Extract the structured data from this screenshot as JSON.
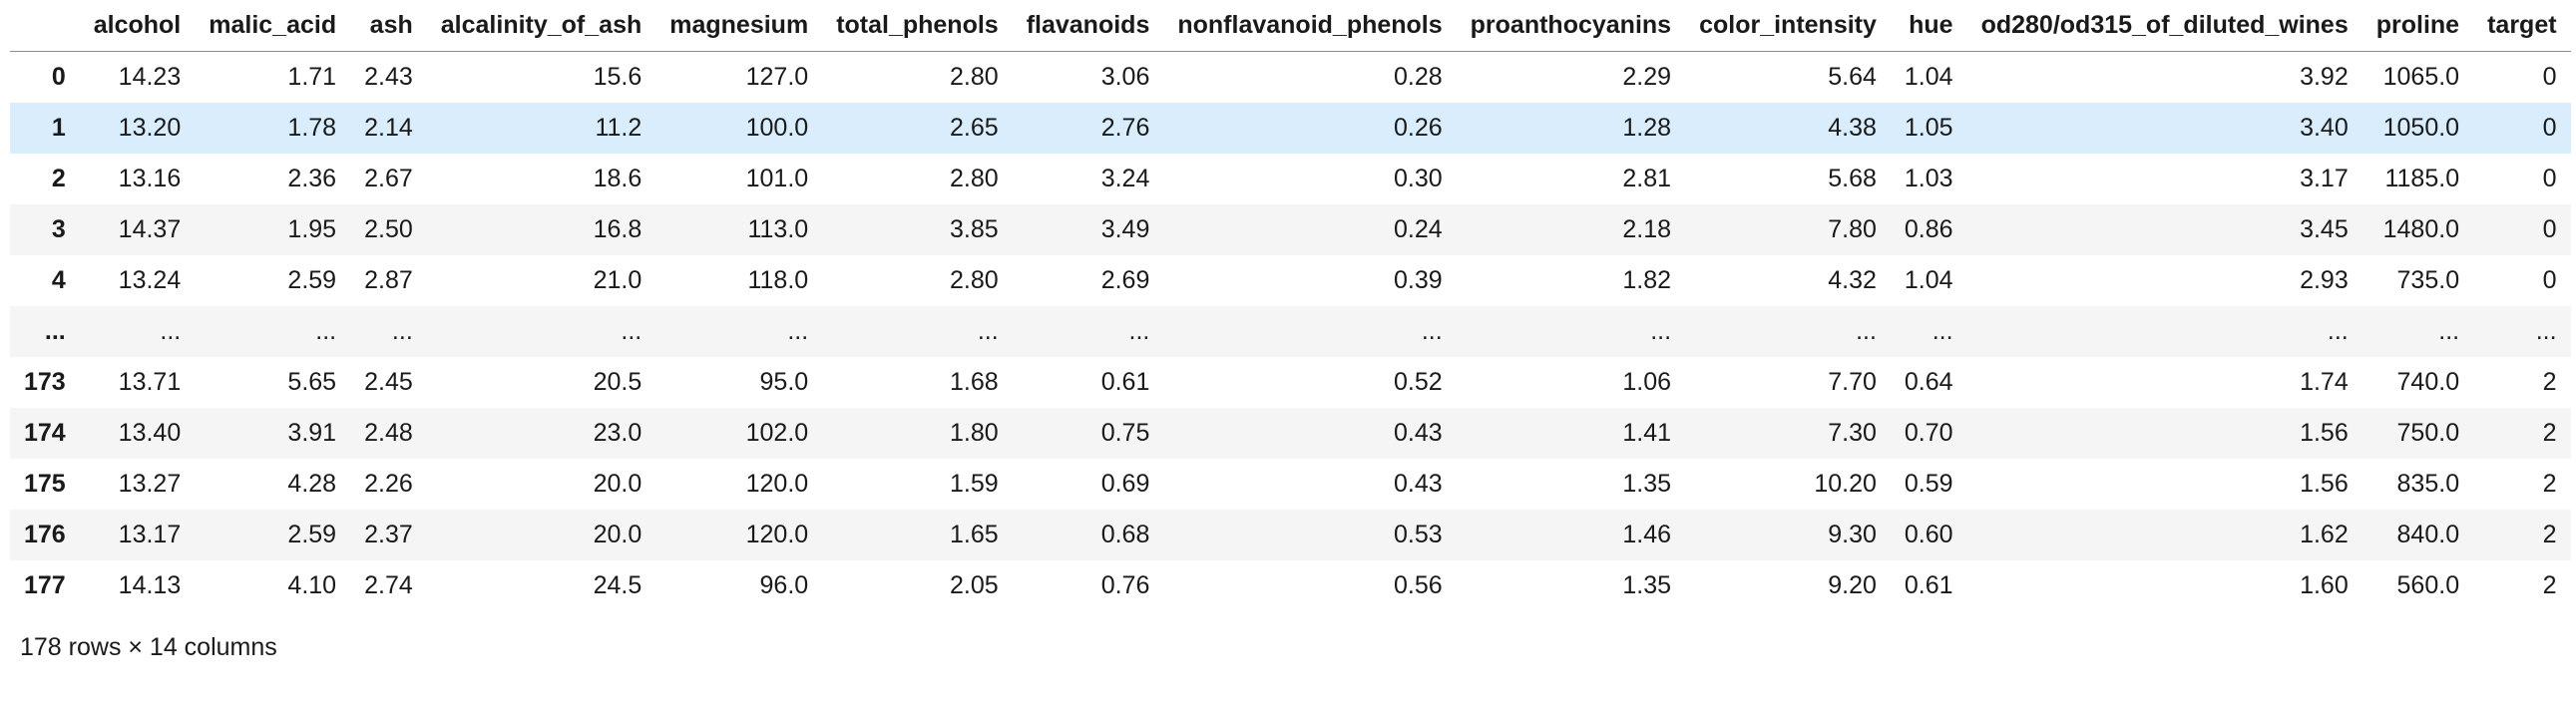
{
  "chart_data": {
    "type": "table",
    "title": "",
    "columns": [
      "alcohol",
      "malic_acid",
      "ash",
      "alcalinity_of_ash",
      "magnesium",
      "total_phenols",
      "flavanoids",
      "nonflavanoid_phenols",
      "proanthocyanins",
      "color_intensity",
      "hue",
      "od280/od315_of_diluted_wines",
      "proline",
      "target"
    ],
    "index": [
      "0",
      "1",
      "2",
      "3",
      "4",
      "...",
      "173",
      "174",
      "175",
      "176",
      "177"
    ],
    "rows": [
      [
        "14.23",
        "1.71",
        "2.43",
        "15.6",
        "127.0",
        "2.80",
        "3.06",
        "0.28",
        "2.29",
        "5.64",
        "1.04",
        "3.92",
        "1065.0",
        "0"
      ],
      [
        "13.20",
        "1.78",
        "2.14",
        "11.2",
        "100.0",
        "2.65",
        "2.76",
        "0.26",
        "1.28",
        "4.38",
        "1.05",
        "3.40",
        "1050.0",
        "0"
      ],
      [
        "13.16",
        "2.36",
        "2.67",
        "18.6",
        "101.0",
        "2.80",
        "3.24",
        "0.30",
        "2.81",
        "5.68",
        "1.03",
        "3.17",
        "1185.0",
        "0"
      ],
      [
        "14.37",
        "1.95",
        "2.50",
        "16.8",
        "113.0",
        "3.85",
        "3.49",
        "0.24",
        "2.18",
        "7.80",
        "0.86",
        "3.45",
        "1480.0",
        "0"
      ],
      [
        "13.24",
        "2.59",
        "2.87",
        "21.0",
        "118.0",
        "2.80",
        "2.69",
        "0.39",
        "1.82",
        "4.32",
        "1.04",
        "2.93",
        "735.0",
        "0"
      ],
      [
        "...",
        "...",
        "...",
        "...",
        "...",
        "...",
        "...",
        "...",
        "...",
        "...",
        "...",
        "...",
        "...",
        "..."
      ],
      [
        "13.71",
        "5.65",
        "2.45",
        "20.5",
        "95.0",
        "1.68",
        "0.61",
        "0.52",
        "1.06",
        "7.70",
        "0.64",
        "1.74",
        "740.0",
        "2"
      ],
      [
        "13.40",
        "3.91",
        "2.48",
        "23.0",
        "102.0",
        "1.80",
        "0.75",
        "0.43",
        "1.41",
        "7.30",
        "0.70",
        "1.56",
        "750.0",
        "2"
      ],
      [
        "13.27",
        "4.28",
        "2.26",
        "20.0",
        "120.0",
        "1.59",
        "0.69",
        "0.43",
        "1.35",
        "10.20",
        "0.59",
        "1.56",
        "835.0",
        "2"
      ],
      [
        "13.17",
        "2.59",
        "2.37",
        "20.0",
        "120.0",
        "1.65",
        "0.68",
        "0.53",
        "1.46",
        "9.30",
        "0.60",
        "1.62",
        "840.0",
        "2"
      ],
      [
        "14.13",
        "4.10",
        "2.74",
        "24.5",
        "96.0",
        "2.05",
        "0.76",
        "0.56",
        "1.35",
        "9.20",
        "0.61",
        "1.60",
        "560.0",
        "2"
      ]
    ],
    "highlighted_row": 1,
    "footer": "178 rows × 14 columns"
  },
  "colors": {
    "background": "#ffffff",
    "stripe": "#f5f5f5",
    "hover_highlight": "#d9edfd",
    "header_border": "#8c8c8c",
    "text": "#1a1a1a"
  }
}
